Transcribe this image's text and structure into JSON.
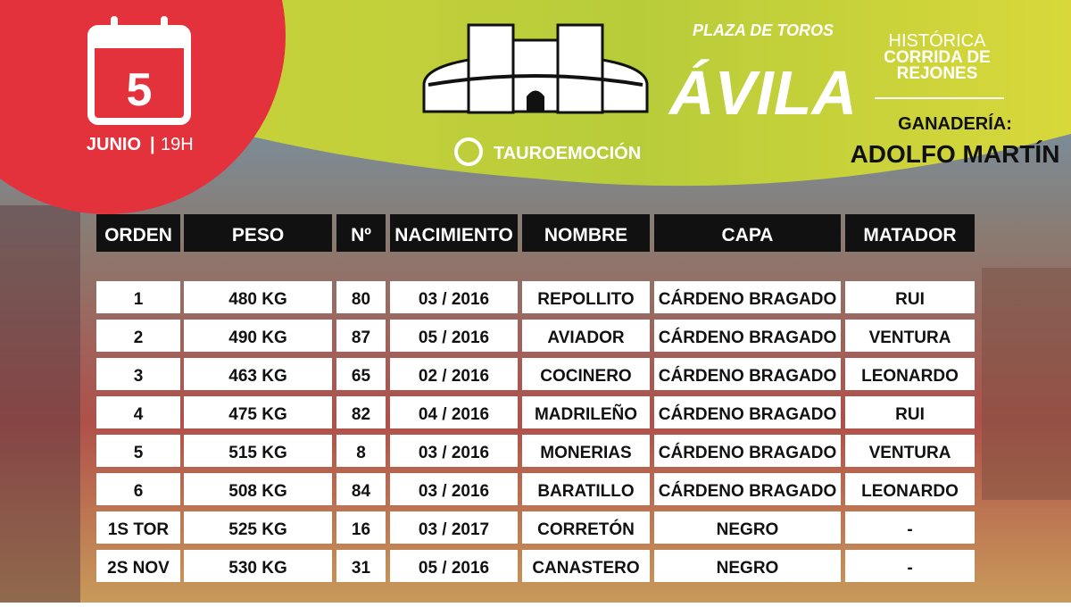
{
  "header": {
    "day": "5",
    "month": "JUNIO",
    "time": "19H",
    "brand": "TAUROEMOCIÓN",
    "venue_small": "PLAZA DE TOROS",
    "venue": "ÁVILA",
    "event_lines": [
      "HISTÓRICA",
      "CORRIDA DE",
      "REJONES"
    ],
    "ganaderia_label": "GANADERÍA:",
    "ganaderia": "ADOLFO MARTÍN"
  },
  "table": {
    "columns": [
      "ORDEN",
      "PESO",
      "Nº",
      "NACIMIENTO",
      "NOMBRE",
      "CAPA",
      "MATADOR"
    ],
    "rows": [
      [
        "1",
        "480 KG",
        "80",
        "03 / 2016",
        "REPOLLITO",
        "CÁRDENO BRAGADO",
        "RUI"
      ],
      [
        "2",
        "490 KG",
        "87",
        "05 / 2016",
        "AVIADOR",
        "CÁRDENO BRAGADO",
        "VENTURA"
      ],
      [
        "3",
        "463 KG",
        "65",
        "02 / 2016",
        "COCINERO",
        "CÁRDENO BRAGADO",
        "LEONARDO"
      ],
      [
        "4",
        "475 KG",
        "82",
        "04 / 2016",
        "MADRILEÑO",
        "CÁRDENO BRAGADO",
        "RUI"
      ],
      [
        "5",
        "515 KG",
        "8",
        "03 / 2016",
        "MONERIAS",
        "CÁRDENO BRAGADO",
        "VENTURA"
      ],
      [
        "6",
        "508 KG",
        "84",
        "03 / 2016",
        "BARATILLO",
        "CÁRDENO BRAGADO",
        "LEONARDO"
      ],
      [
        "1S TOR",
        "525 KG",
        "16",
        "03 / 2017",
        "CORRETÓN",
        "NEGRO",
        "-"
      ],
      [
        "2S NOV",
        "530 KG",
        "31",
        "05 / 2016",
        "CANASTERO",
        "NEGRO",
        "-"
      ]
    ]
  }
}
